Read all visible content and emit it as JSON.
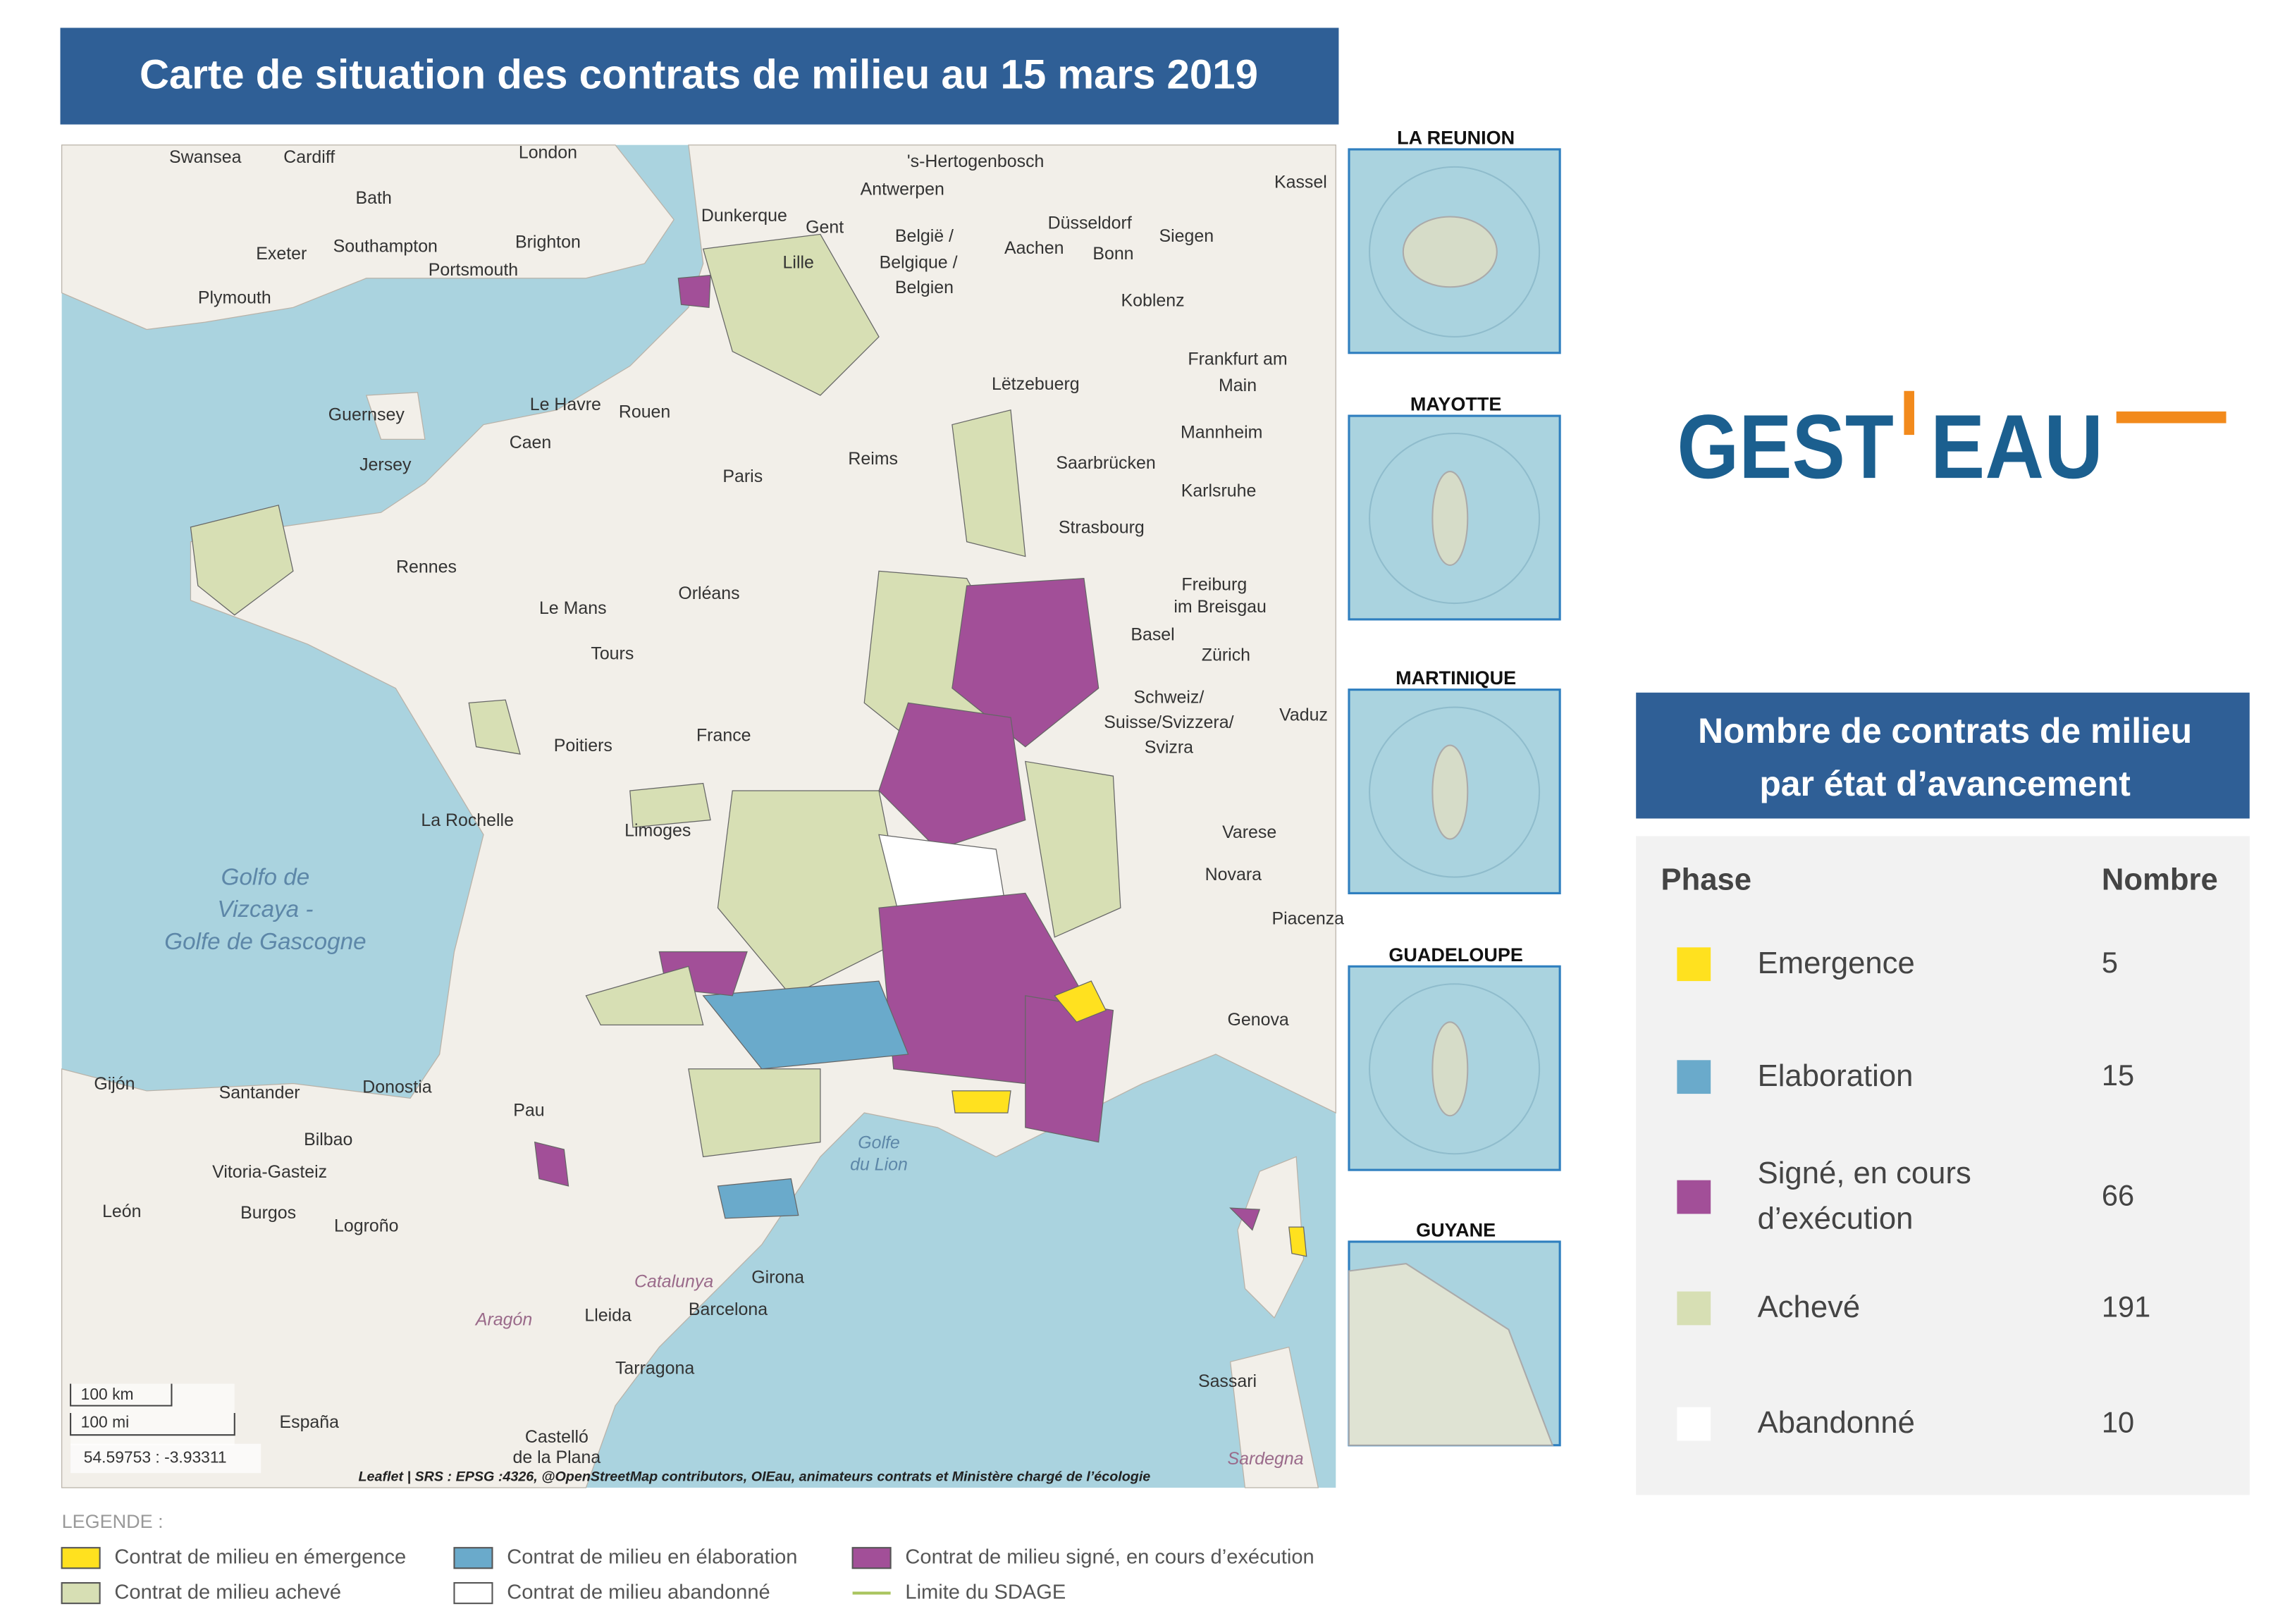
{
  "header": {
    "title": "Carte de situation des contrats de milieu au 15 mars 2019"
  },
  "map": {
    "labels": [
      "Swansea",
      "Cardiff",
      "London",
      "Bath",
      "Southampton",
      "Brighton",
      "Portsmouth",
      "Exeter",
      "Plymouth",
      "'s-Hertogenbosch",
      "Antwerpen",
      "Dunkerque",
      "Gent",
      "Lille",
      "België /",
      "Belgique /",
      "Belgien",
      "Düsseldorf",
      "Aachen",
      "Bonn",
      "Siegen",
      "Koblenz",
      "Kassel",
      "Frankfurt am",
      "Main",
      "Lëtzebuerg",
      "Mannheim",
      "Karlsruhe",
      "Saarbrücken",
      "Strasbourg",
      "Guernsey",
      "Jersey",
      "Le Havre",
      "Rouen",
      "Caen",
      "Paris",
      "Reims",
      "Rennes",
      "Le Mans",
      "Orléans",
      "Tours",
      "Poitiers",
      "France",
      "La Rochelle",
      "Limoges",
      "Golfo de",
      "Vizcaya -",
      "Golfe de Gascogne",
      "Freiburg",
      "im Breisgau",
      "Basel",
      "Zürich",
      "Schweiz/",
      "Suisse/Svizzera/",
      "Svizra",
      "Vaduz",
      "Varese",
      "Novara",
      "Piacenza",
      "Genova",
      "Pau",
      "Gijón",
      "Santander",
      "Donostia",
      "Bilbao",
      "Vitoria-Gasteiz",
      "León",
      "Burgos",
      "Logroño",
      "Barcelona",
      "Girona",
      "Lleida",
      "Tarragona",
      "Catalunya",
      "Aragón",
      "Sassari",
      "Sardegna",
      "España",
      "Castelló",
      "de la Plana",
      "Golfe",
      "du Lion"
    ],
    "attribution": "Leaflet | SRS : EPSG :4326, @OpenStreetMap contributors, OIEau, animateurs contrats et Ministère chargé de l’écologie",
    "scale": [
      "100 km",
      "100 mi"
    ],
    "coordinates": "54.59753 : -3.93311"
  },
  "insets": [
    "LA REUNION",
    "MAYOTTE",
    "MARTINIQUE",
    "GUADELOUPE",
    "GUYANE"
  ],
  "logo": {
    "left": "GEST",
    "right": "EAU"
  },
  "table": {
    "title": [
      "Nombre de contrats de milieu",
      "par état d’avancement"
    ],
    "columns": [
      "Phase",
      "Nombre"
    ],
    "rows": [
      {
        "phase": [
          "Emergence"
        ],
        "count": 5,
        "color": "#ffe11f"
      },
      {
        "phase": [
          "Elaboration"
        ],
        "count": 15,
        "color": "#6aaacb"
      },
      {
        "phase": [
          "Signé, en cours",
          "d’exécution"
        ],
        "count": 66,
        "color": "#a24f98"
      },
      {
        "phase": [
          "Achevé"
        ],
        "count": 191,
        "color": "#d7dfb4"
      },
      {
        "phase": [
          "Abandonné"
        ],
        "count": 10,
        "color": "#ffffff"
      }
    ]
  },
  "legend": {
    "title": "LEGENDE :",
    "items": [
      {
        "label": "Contrat de milieu en émergence",
        "color": "#ffe11f"
      },
      {
        "label": "Contrat de milieu en élaboration",
        "color": "#6aaacb"
      },
      {
        "label": "Contrat de milieu signé, en cours d’exécution",
        "color": "#a24f98"
      },
      {
        "label": "Contrat de milieu achevé",
        "color": "#d7dfb4"
      },
      {
        "label": "Contrat de milieu abandonné",
        "color": "#ffffff"
      },
      {
        "label": "Limite du SDAGE",
        "color": "#a9c45e",
        "symbol": "line"
      }
    ]
  }
}
